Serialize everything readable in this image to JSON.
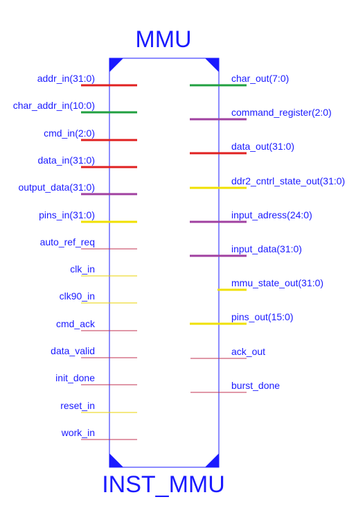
{
  "block": {
    "name": "MMU",
    "instance": "INST_MMU",
    "outline_color": "#1a1aff",
    "corner_color": "#1a1aff"
  },
  "colors": {
    "red": "#e02020",
    "green": "#20a040",
    "purple": "#a040a0",
    "yellow": "#f0e000",
    "thin_red": "#c03050",
    "thin_yellow": "#e8d000",
    "text": "#1a1aff"
  },
  "inputs": [
    {
      "label": "addr_in(31:0)",
      "color": "red",
      "bus": true
    },
    {
      "label": "char_addr_in(10:0)",
      "color": "green",
      "bus": true
    },
    {
      "label": "cmd_in(2:0)",
      "color": "red",
      "bus": true
    },
    {
      "label": "data_in(31:0)",
      "color": "red",
      "bus": true
    },
    {
      "label": "output_data(31:0)",
      "color": "purple",
      "bus": true
    },
    {
      "label": "pins_in(31:0)",
      "color": "yellow",
      "bus": true
    },
    {
      "label": "auto_ref_req",
      "color": "thin_red",
      "bus": false
    },
    {
      "label": "clk_in",
      "color": "thin_yellow",
      "bus": false
    },
    {
      "label": "clk90_in",
      "color": "thin_yellow",
      "bus": false
    },
    {
      "label": "cmd_ack",
      "color": "thin_red",
      "bus": false
    },
    {
      "label": "data_valid",
      "color": "thin_red",
      "bus": false
    },
    {
      "label": "init_done",
      "color": "thin_red",
      "bus": false
    },
    {
      "label": "reset_in",
      "color": "thin_yellow",
      "bus": false
    },
    {
      "label": "work_in",
      "color": "thin_red",
      "bus": false
    }
  ],
  "outputs": [
    {
      "label": "char_out(7:0)",
      "color": "green",
      "bus": true
    },
    {
      "label": "command_register(2:0)",
      "color": "purple",
      "bus": true
    },
    {
      "label": "data_out(31:0)",
      "color": "red",
      "bus": true
    },
    {
      "label": "ddr2_cntrl_state_out(31:0)",
      "color": "yellow",
      "bus": true
    },
    {
      "label": "input_adress(24:0)",
      "color": "purple",
      "bus": true
    },
    {
      "label": "input_data(31:0)",
      "color": "purple",
      "bus": true
    },
    {
      "label": "mmu_state_out(31:0)",
      "color": "yellow",
      "bus": true
    },
    {
      "label": "pins_out(15:0)",
      "color": "yellow",
      "bus": true
    },
    {
      "label": "ack_out",
      "color": "thin_red",
      "bus": false
    },
    {
      "label": "burst_done",
      "color": "thin_red",
      "bus": false
    }
  ]
}
